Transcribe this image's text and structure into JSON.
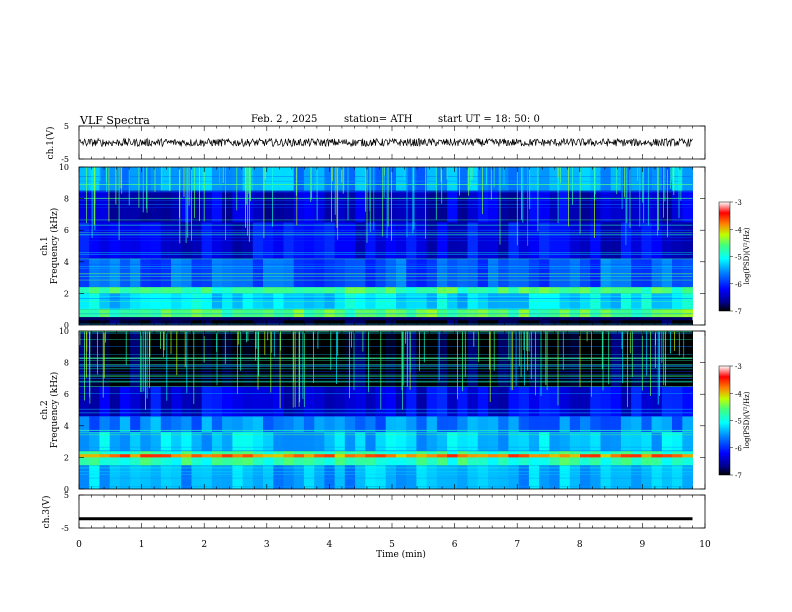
{
  "header": {
    "title": "VLF Spectra",
    "date": "Feb. 2 , 2025",
    "station": "station= ATH",
    "start_ut": "start UT =  18: 50: 0"
  },
  "chart_data": [
    {
      "type": "line",
      "panel": "ch1-waveform",
      "ylabel": "ch.1(V)",
      "ylim": [
        -5,
        5
      ],
      "yticks": [
        "5",
        "-5"
      ],
      "series": [
        {
          "values_description_hidden": true,
          "x_range": [
            0,
            9.8
          ],
          "y_level": 0,
          "y_noise_amplitude": 1.2
        }
      ]
    },
    {
      "type": "heatmap",
      "panel": "ch1-spectrogram",
      "ylabel": "ch.1\nFrequency (kHz)",
      "ylabel_top": "Frequency (kHz)",
      "ylabel_bottom": "ch.1",
      "ylim": [
        0,
        10
      ],
      "yticks": [
        "0",
        "2",
        "4",
        "6",
        "8",
        "10"
      ],
      "x_range": [
        0,
        9.8
      ],
      "bands_khz": [
        {
          "from": 0,
          "to": 0.3,
          "level": -7
        },
        {
          "from": 0.5,
          "to": 1.0,
          "level": -4.6
        },
        {
          "from": 1.0,
          "to": 2.0,
          "level": -5.2
        },
        {
          "from": 2.0,
          "to": 2.4,
          "level": -4.7
        },
        {
          "from": 2.4,
          "to": 4.2,
          "level": -5.8
        },
        {
          "from": 4.2,
          "to": 6.5,
          "level": -6.3
        },
        {
          "from": 6.5,
          "to": 8.5,
          "level": -6.4
        },
        {
          "from": 8.5,
          "to": 10,
          "level": -5.5
        }
      ],
      "colorbar": {
        "label": "log(PSD)(V²/Hz)",
        "range": [
          -7,
          -3
        ],
        "ticks": [
          "-3",
          "-4",
          "-5",
          "-6",
          "-7"
        ]
      }
    },
    {
      "type": "heatmap",
      "panel": "ch2-spectrogram",
      "ylabel_top": "Frequency (kHz)",
      "ylabel_bottom": "ch.2",
      "ylim": [
        0,
        10
      ],
      "yticks": [
        "0",
        "2",
        "4",
        "6",
        "8",
        "10"
      ],
      "x_range": [
        0,
        9.8
      ],
      "bands_khz": [
        {
          "from": 0,
          "to": 1.5,
          "level": -5.4
        },
        {
          "from": 1.5,
          "to": 2.4,
          "level": -4.8
        },
        {
          "from": 2.0,
          "to": 2.2,
          "level": -3.8
        },
        {
          "from": 2.4,
          "to": 3.6,
          "level": -5.3
        },
        {
          "from": 3.6,
          "to": 4.6,
          "level": -5.6
        },
        {
          "from": 4.6,
          "to": 6.5,
          "level": -6.3
        },
        {
          "from": 6.5,
          "to": 10,
          "level": -7
        }
      ],
      "colorbar": {
        "label": "log(PSD)(V²/Hz)",
        "range": [
          -7,
          -3
        ],
        "ticks": [
          "-3",
          "-4",
          "-5",
          "-6",
          "-7"
        ]
      }
    },
    {
      "type": "line",
      "panel": "ch3-waveform",
      "ylabel": "ch.3(V)",
      "ylim": [
        -5,
        5
      ],
      "yticks": [
        "5",
        "-5"
      ],
      "series": [
        {
          "x_range": [
            0,
            9.8
          ],
          "y_level": -2.2
        }
      ]
    }
  ],
  "xaxis": {
    "label": "Time (min)",
    "range": [
      0,
      10
    ],
    "ticks": [
      "0",
      "1",
      "2",
      "3",
      "4",
      "5",
      "6",
      "7",
      "8",
      "9",
      "10"
    ]
  },
  "colors": {
    "jet": [
      "#000080",
      "#0000ff",
      "#0080ff",
      "#00ffff",
      "#80ff80",
      "#ffff00",
      "#ff8000",
      "#ff0000",
      "#800000"
    ]
  }
}
